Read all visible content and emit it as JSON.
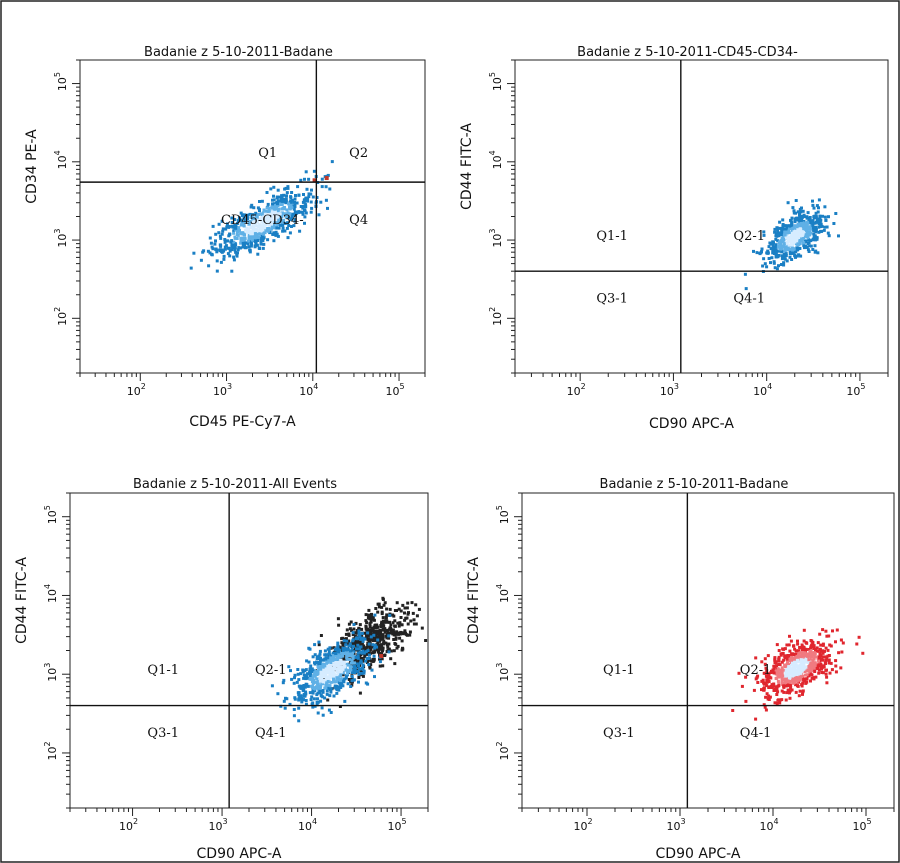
{
  "chart_data": [
    {
      "type": "scatter",
      "title": "Badanie z 5-10-2011-Badane",
      "xlabel": "CD45 PE-Cy7-A",
      "ylabel": "CD34 PE-A",
      "xscale": "log",
      "yscale": "log",
      "xlim": [
        20,
        200000
      ],
      "ylim": [
        20,
        200000
      ],
      "xticks": [
        {
          "base": "10",
          "exp": "2"
        },
        {
          "base": "10",
          "exp": "3"
        },
        {
          "base": "10",
          "exp": "4"
        },
        {
          "base": "10",
          "exp": "5"
        }
      ],
      "yticks": [
        {
          "base": "10",
          "exp": "2"
        },
        {
          "base": "10",
          "exp": "3"
        },
        {
          "base": "10",
          "exp": "4"
        },
        {
          "base": "10",
          "exp": "5"
        }
      ],
      "gate": {
        "x": 11000,
        "y": 5500
      },
      "quadrants": [
        {
          "label": "Q1",
          "x": 3000,
          "y": 11500
        },
        {
          "label": "Q2",
          "x": 34000,
          "y": 11500
        },
        {
          "label": "Q4",
          "x": 34000,
          "y": 1600
        }
      ],
      "annotations": [
        {
          "label": "CD45-CD34-",
          "x": 2600,
          "y": 1600
        }
      ],
      "populations": [
        {
          "name": "",
          "color": "#1a7fc4",
          "center": [
            2600,
            1650
          ],
          "spread": [
            0.3,
            0.14
          ],
          "tilt": 0.55,
          "count": 650
        }
      ],
      "extra_points": [
        {
          "x": 14500,
          "y": 6200,
          "color": "#c0392b"
        },
        {
          "x": 10500,
          "y": 5800,
          "color": "#c0392b"
        }
      ]
    },
    {
      "type": "scatter",
      "title": "Badanie z 5-10-2011-CD45-CD34-",
      "xlabel": "CD90 APC-A",
      "ylabel": "CD44 FITC-A",
      "xscale": "log",
      "yscale": "log",
      "xlim": [
        20,
        200000
      ],
      "ylim": [
        20,
        200000
      ],
      "xticks": [
        {
          "base": "10",
          "exp": "2"
        },
        {
          "base": "10",
          "exp": "3"
        },
        {
          "base": "10",
          "exp": "4"
        },
        {
          "base": "10",
          "exp": "5"
        }
      ],
      "yticks": [
        {
          "base": "10",
          "exp": "2"
        },
        {
          "base": "10",
          "exp": "3"
        },
        {
          "base": "10",
          "exp": "4"
        },
        {
          "base": "10",
          "exp": "5"
        }
      ],
      "gate": {
        "x": 1200,
        "y": 400
      },
      "quadrants": [
        {
          "label": "Q1-1",
          "x": 220,
          "y": 1000
        },
        {
          "label": "Q2-1",
          "x": 6500,
          "y": 1000
        },
        {
          "label": "Q3-1",
          "x": 220,
          "y": 160
        },
        {
          "label": "Q4-1",
          "x": 6500,
          "y": 160
        }
      ],
      "annotations": [],
      "populations": [
        {
          "name": "",
          "color": "#1a7fc4",
          "center": [
            20000,
            1100
          ],
          "spread": [
            0.16,
            0.13
          ],
          "tilt": 0.6,
          "count": 550
        }
      ],
      "extra_points": []
    },
    {
      "type": "scatter",
      "title": "Badanie z 5-10-2011-All Events",
      "xlabel": "CD90 APC-A",
      "ylabel": "CD44 FITC-A",
      "xscale": "log",
      "yscale": "log",
      "xlim": [
        20,
        200000
      ],
      "ylim": [
        20,
        200000
      ],
      "xticks": [
        {
          "base": "10",
          "exp": "2"
        },
        {
          "base": "10",
          "exp": "3"
        },
        {
          "base": "10",
          "exp": "4"
        },
        {
          "base": "10",
          "exp": "5"
        }
      ],
      "yticks": [
        {
          "base": "10",
          "exp": "2"
        },
        {
          "base": "10",
          "exp": "3"
        },
        {
          "base": "10",
          "exp": "4"
        },
        {
          "base": "10",
          "exp": "5"
        }
      ],
      "gate": {
        "x": 1200,
        "y": 400
      },
      "quadrants": [
        {
          "label": "Q1-1",
          "x": 220,
          "y": 1000
        },
        {
          "label": "Q2-1",
          "x": 3500,
          "y": 1000
        },
        {
          "label": "Q3-1",
          "x": 220,
          "y": 160
        },
        {
          "label": "Q4-1",
          "x": 3500,
          "y": 160
        }
      ],
      "annotations": [],
      "populations": [
        {
          "name": "",
          "color": "#222222",
          "center": [
            45000,
            2600
          ],
          "spread": [
            0.22,
            0.18
          ],
          "tilt": 0.6,
          "count": 550
        },
        {
          "name": "",
          "color": "#1a7fc4",
          "center": [
            17000,
            1100
          ],
          "spread": [
            0.22,
            0.16
          ],
          "tilt": 0.6,
          "count": 650
        }
      ],
      "extra_points": [
        {
          "x": 60000,
          "y": 1700,
          "color": "#c0392b"
        }
      ]
    },
    {
      "type": "scatter",
      "title": "Badanie z 5-10-2011-Badane",
      "xlabel": "CD90 APC-A",
      "ylabel": "CD44 FITC-A",
      "xscale": "log",
      "yscale": "log",
      "xlim": [
        20,
        200000
      ],
      "ylim": [
        20,
        200000
      ],
      "xticks": [
        {
          "base": "10",
          "exp": "2"
        },
        {
          "base": "10",
          "exp": "3"
        },
        {
          "base": "10",
          "exp": "4"
        },
        {
          "base": "10",
          "exp": "5"
        }
      ],
      "yticks": [
        {
          "base": "10",
          "exp": "2"
        },
        {
          "base": "10",
          "exp": "3"
        },
        {
          "base": "10",
          "exp": "4"
        },
        {
          "base": "10",
          "exp": "5"
        }
      ],
      "gate": {
        "x": 1200,
        "y": 400
      },
      "quadrants": [
        {
          "label": "Q1-1",
          "x": 220,
          "y": 1000
        },
        {
          "label": "Q2-1",
          "x": 6500,
          "y": 1000
        },
        {
          "label": "Q3-1",
          "x": 220,
          "y": 160
        },
        {
          "label": "Q4-1",
          "x": 6500,
          "y": 160
        }
      ],
      "annotations": [],
      "populations": [
        {
          "name": "",
          "color": "#e0262e",
          "center": [
            18000,
            1200
          ],
          "spread": [
            0.2,
            0.15
          ],
          "tilt": 0.5,
          "count": 650
        }
      ],
      "extra_points": []
    }
  ]
}
